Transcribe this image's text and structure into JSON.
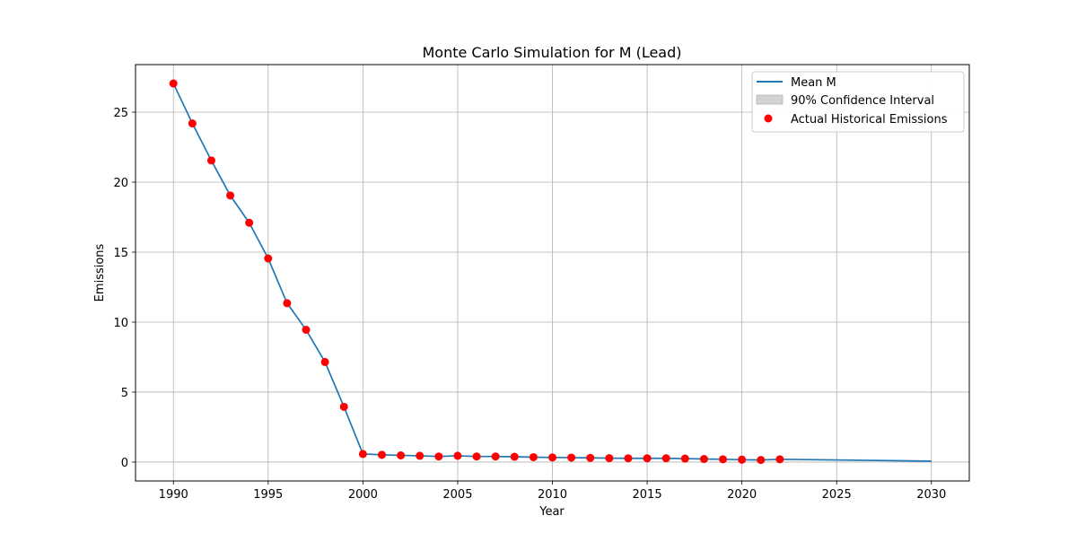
{
  "chart_data": {
    "type": "line",
    "title": "Monte Carlo Simulation for M (Lead)",
    "xlabel": "Year",
    "ylabel": "Emissions",
    "xlim": [
      1988.0,
      2032.0
    ],
    "ylim": [
      -1.35,
      28.4
    ],
    "xticks": [
      1990,
      1995,
      2000,
      2005,
      2010,
      2015,
      2020,
      2025,
      2030
    ],
    "yticks": [
      0,
      5,
      10,
      15,
      20,
      25
    ],
    "grid": true,
    "legend_position": "top-right",
    "legend": {
      "mean": "Mean M",
      "ci": "90% Confidence Interval",
      "actual": "Actual Historical Emissions"
    },
    "colors": {
      "mean": "#1f77b4",
      "ci": "#d3d3d3",
      "actual": "#ff0000",
      "grid": "#b0b0b0"
    },
    "series": [
      {
        "name": "Mean M",
        "type": "line",
        "x": [
          1990,
          1991,
          1992,
          1993,
          1994,
          1995,
          1996,
          1997,
          1998,
          1999,
          2000,
          2001,
          2002,
          2003,
          2004,
          2005,
          2006,
          2007,
          2008,
          2009,
          2010,
          2011,
          2012,
          2013,
          2014,
          2015,
          2016,
          2017,
          2018,
          2019,
          2020,
          2021,
          2022,
          2030
        ],
        "y": [
          27.05,
          24.2,
          21.55,
          19.05,
          17.1,
          14.55,
          11.35,
          9.45,
          7.15,
          3.95,
          0.58,
          0.52,
          0.48,
          0.45,
          0.4,
          0.45,
          0.4,
          0.4,
          0.38,
          0.35,
          0.33,
          0.32,
          0.3,
          0.28,
          0.27,
          0.27,
          0.27,
          0.25,
          0.22,
          0.2,
          0.17,
          0.15,
          0.2,
          0.07
        ]
      },
      {
        "name": "Actual Historical Emissions",
        "type": "scatter",
        "x": [
          1990,
          1991,
          1992,
          1993,
          1994,
          1995,
          1996,
          1997,
          1998,
          1999,
          2000,
          2001,
          2002,
          2003,
          2004,
          2005,
          2006,
          2007,
          2008,
          2009,
          2010,
          2011,
          2012,
          2013,
          2014,
          2015,
          2016,
          2017,
          2018,
          2019,
          2020,
          2021,
          2022
        ],
        "y": [
          27.05,
          24.2,
          21.55,
          19.05,
          17.1,
          14.55,
          11.35,
          9.45,
          7.15,
          3.95,
          0.58,
          0.52,
          0.48,
          0.45,
          0.4,
          0.45,
          0.4,
          0.4,
          0.38,
          0.35,
          0.33,
          0.32,
          0.3,
          0.28,
          0.27,
          0.27,
          0.27,
          0.25,
          0.22,
          0.2,
          0.17,
          0.15,
          0.2
        ]
      }
    ]
  }
}
